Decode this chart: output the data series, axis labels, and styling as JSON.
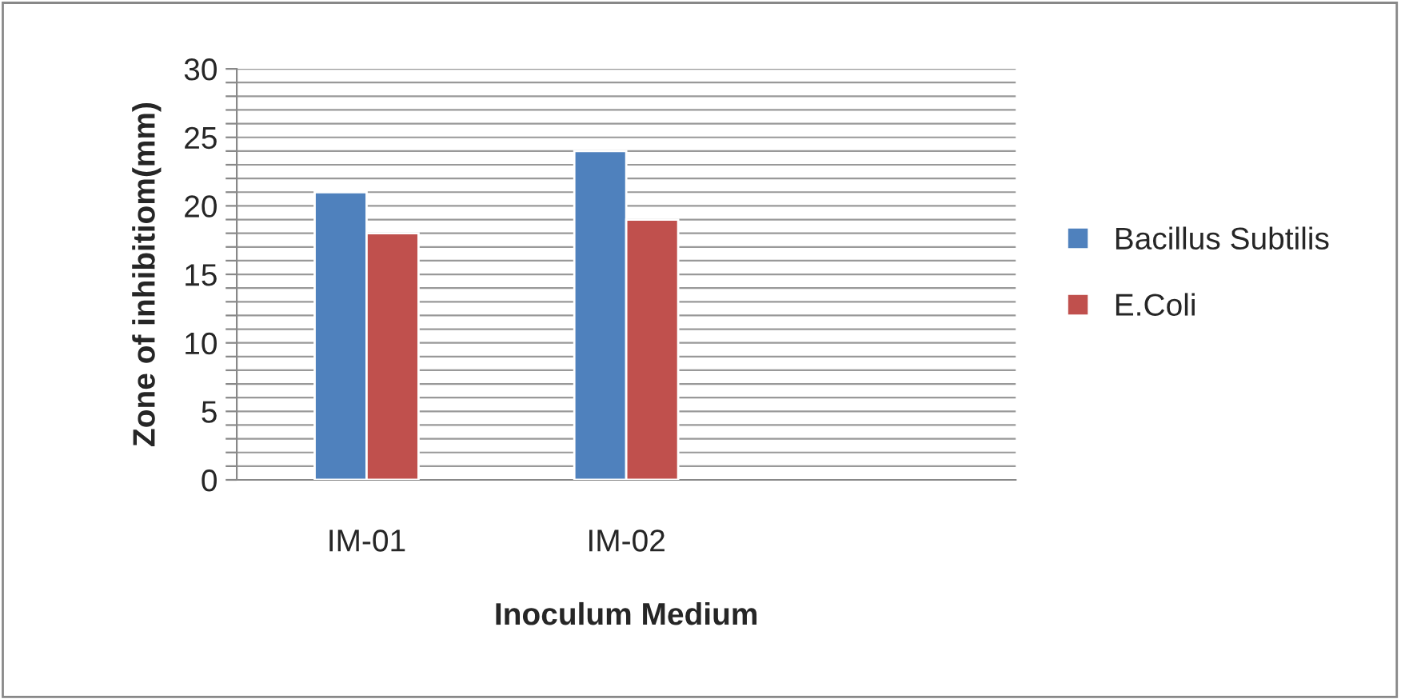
{
  "chart_data": {
    "type": "bar",
    "xlabel": "Inoculum Medium",
    "ylabel": "Zone of inhibitiom(mm)",
    "categories": [
      "IM-01",
      "IM-02",
      null
    ],
    "series": [
      {
        "name": "Bacillus Subtilis",
        "color": "#4f81bd",
        "values": [
          21,
          24,
          null
        ]
      },
      {
        "name": "E.Coli",
        "color": "#c0504d",
        "values": [
          18,
          19,
          null
        ]
      }
    ],
    "ylim": [
      0,
      30
    ],
    "yticks": [
      0,
      {
        "value": 1,
        "label": null
      },
      {
        "value": 2,
        "label": null
      },
      {
        "value": 3,
        "label": null
      },
      {
        "value": 4,
        "label": null
      },
      5,
      {
        "value": 6,
        "label": null
      },
      {
        "value": 7,
        "label": null
      },
      {
        "value": 8,
        "label": null
      },
      {
        "value": 9,
        "label": null
      },
      10,
      {
        "value": 11,
        "label": null
      },
      {
        "value": 12,
        "label": null
      },
      {
        "value": 13,
        "label": null
      },
      {
        "value": 14,
        "label": null
      },
      15,
      {
        "value": 16,
        "label": null
      },
      {
        "value": 17,
        "label": null
      },
      {
        "value": 18,
        "label": null
      },
      {
        "value": 19,
        "label": null
      },
      20,
      {
        "value": 21,
        "label": null
      },
      {
        "value": 22,
        "label": null
      },
      {
        "value": 23,
        "label": null
      },
      {
        "value": 24,
        "label": null
      },
      25,
      {
        "value": 26,
        "label": null
      },
      {
        "value": 27,
        "label": null
      },
      {
        "value": 28,
        "label": null
      },
      {
        "value": 29,
        "label": null
      },
      30
    ],
    "grid": "y",
    "legend": "right"
  }
}
